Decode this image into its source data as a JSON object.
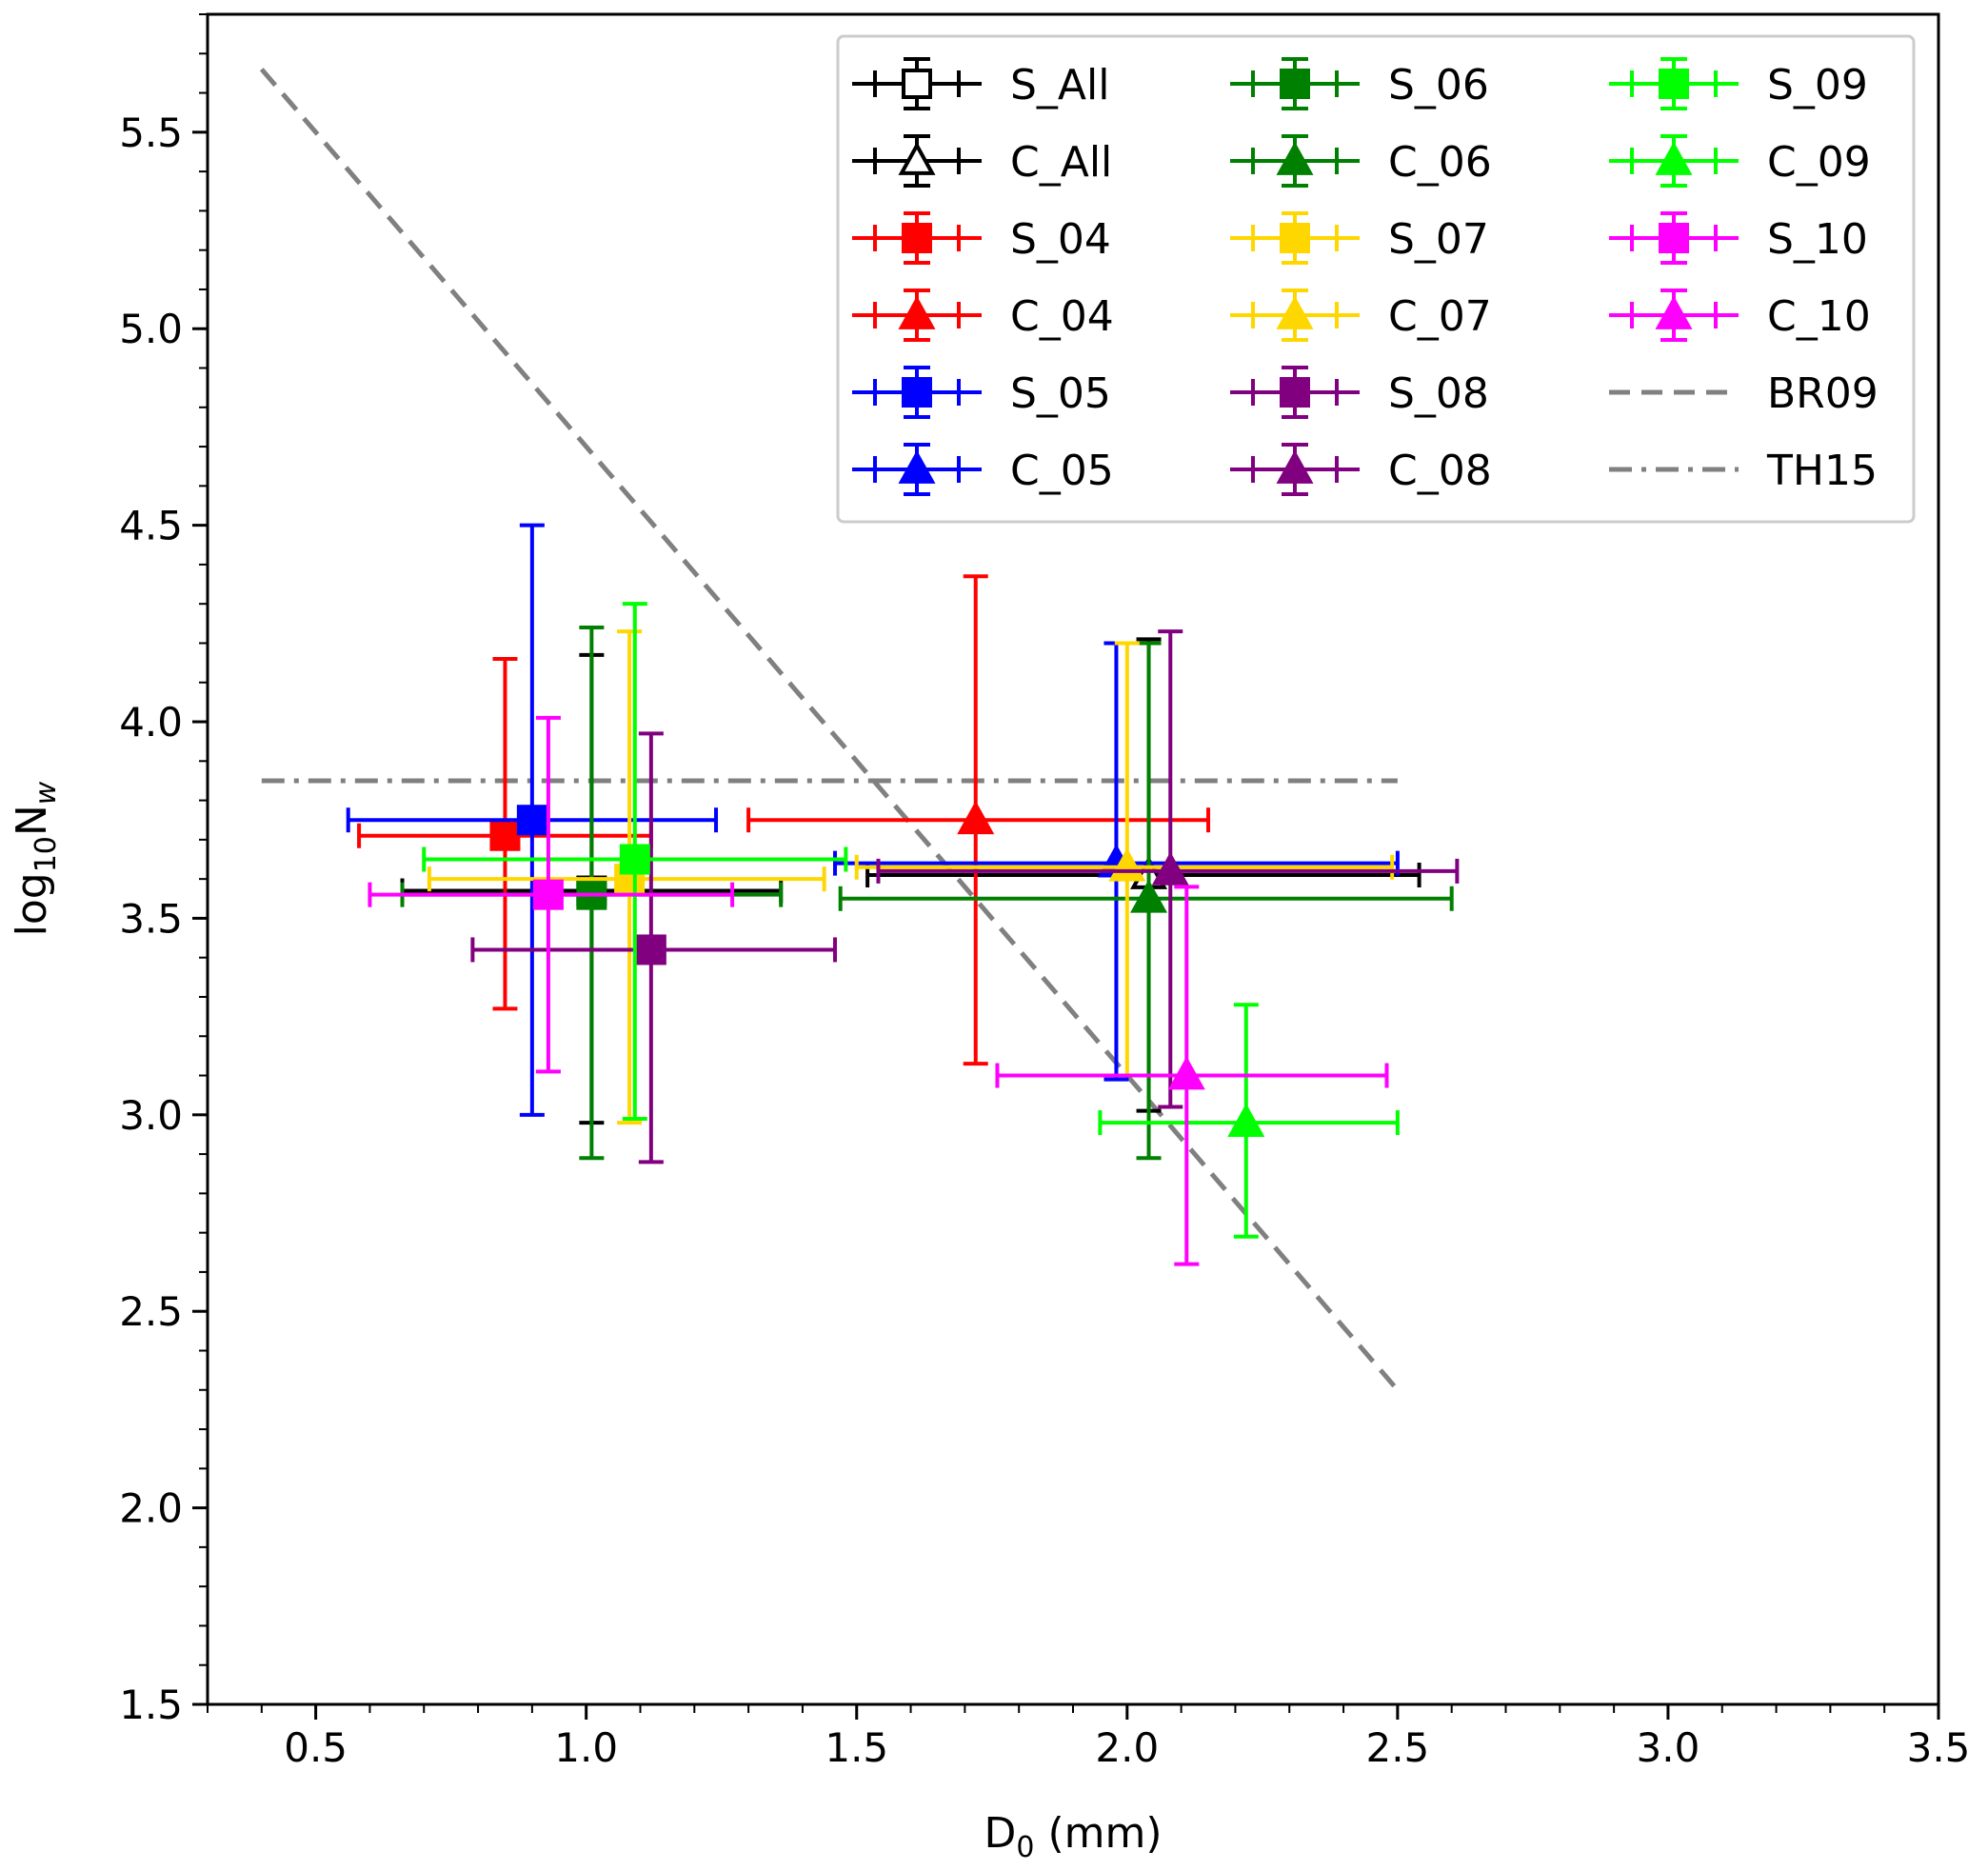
{
  "chart_data": {
    "type": "scatter",
    "title": "",
    "xlabel_main": "D",
    "xlabel_sub": "0",
    "xlabel_unit": " (mm)",
    "ylabel_pre": "log",
    "ylabel_sub": "10",
    "ylabel_main": "N",
    "ylabel_sub2": "w",
    "xlim": [
      0.3,
      3.5
    ],
    "ylim": [
      1.5,
      5.8
    ],
    "xticks": [
      {
        "value": 0.5,
        "label": "0.5"
      },
      {
        "value": 1.0,
        "label": "1.0"
      },
      {
        "value": 1.5,
        "label": "1.5"
      },
      {
        "value": 2.0,
        "label": "2.0"
      },
      {
        "value": 2.5,
        "label": "2.5"
      },
      {
        "value": 3.0,
        "label": "3.0"
      },
      {
        "value": 3.5,
        "label": "3.5"
      }
    ],
    "yticks": [
      {
        "value": 1.5,
        "label": "1.5"
      },
      {
        "value": 2.0,
        "label": "2.0"
      },
      {
        "value": 2.5,
        "label": "2.5"
      },
      {
        "value": 3.0,
        "label": "3.0"
      },
      {
        "value": 3.5,
        "label": "3.5"
      },
      {
        "value": 4.0,
        "label": "4.0"
      },
      {
        "value": 4.5,
        "label": "4.5"
      },
      {
        "value": 5.0,
        "label": "5.0"
      },
      {
        "value": 5.5,
        "label": "5.5"
      }
    ],
    "xminor_step": 0.1,
    "yminor_step": 0.1,
    "grid": false,
    "legend_position": "top-right",
    "legend_columns": 3,
    "series": [
      {
        "name": "S_All",
        "color": "#000000",
        "marker": "square",
        "filled": false,
        "x": 1.01,
        "y": 3.57,
        "xerr": [
          0.66,
          1.36
        ],
        "yerr": [
          2.98,
          4.17
        ]
      },
      {
        "name": "C_All",
        "color": "#000000",
        "marker": "triangle",
        "filled": false,
        "x": 2.04,
        "y": 3.61,
        "xerr": [
          1.52,
          2.54
        ],
        "yerr": [
          3.01,
          4.21
        ]
      },
      {
        "name": "S_04",
        "color": "#ff0000",
        "marker": "square",
        "filled": true,
        "x": 0.85,
        "y": 3.71,
        "xerr": [
          0.58,
          1.12
        ],
        "yerr": [
          3.27,
          4.16
        ]
      },
      {
        "name": "C_04",
        "color": "#ff0000",
        "marker": "triangle",
        "filled": true,
        "x": 1.72,
        "y": 3.75,
        "xerr": [
          1.3,
          2.15
        ],
        "yerr": [
          3.13,
          4.37
        ]
      },
      {
        "name": "S_05",
        "color": "#0000ff",
        "marker": "square",
        "filled": true,
        "x": 0.9,
        "y": 3.75,
        "xerr": [
          0.56,
          1.24
        ],
        "yerr": [
          3.0,
          4.5
        ]
      },
      {
        "name": "C_05",
        "color": "#0000ff",
        "marker": "triangle",
        "filled": true,
        "x": 1.98,
        "y": 3.64,
        "xerr": [
          1.46,
          2.5
        ],
        "yerr": [
          3.09,
          4.2
        ]
      },
      {
        "name": "S_06",
        "color": "#008000",
        "marker": "square",
        "filled": true,
        "x": 1.01,
        "y": 3.56,
        "xerr": [
          0.66,
          1.36
        ],
        "yerr": [
          2.89,
          4.24
        ]
      },
      {
        "name": "C_06",
        "color": "#008000",
        "marker": "triangle",
        "filled": true,
        "x": 2.04,
        "y": 3.55,
        "xerr": [
          1.47,
          2.6
        ],
        "yerr": [
          2.89,
          4.2
        ]
      },
      {
        "name": "S_07",
        "color": "#ffd700",
        "marker": "square",
        "filled": true,
        "x": 1.08,
        "y": 3.6,
        "xerr": [
          0.71,
          1.44
        ],
        "yerr": [
          2.98,
          4.23
        ]
      },
      {
        "name": "C_07",
        "color": "#ffd700",
        "marker": "triangle",
        "filled": true,
        "x": 2.0,
        "y": 3.63,
        "xerr": [
          1.5,
          2.49
        ],
        "yerr": [
          3.1,
          4.2
        ]
      },
      {
        "name": "S_08",
        "color": "#800080",
        "marker": "square",
        "filled": true,
        "x": 1.12,
        "y": 3.42,
        "xerr": [
          0.79,
          1.46
        ],
        "yerr": [
          2.88,
          3.97
        ]
      },
      {
        "name": "C_08",
        "color": "#800080",
        "marker": "triangle",
        "filled": true,
        "x": 2.08,
        "y": 3.62,
        "xerr": [
          1.54,
          2.61
        ],
        "yerr": [
          3.02,
          4.23
        ]
      },
      {
        "name": "S_09",
        "color": "#00ff00",
        "marker": "square",
        "filled": true,
        "x": 1.09,
        "y": 3.65,
        "xerr": [
          0.7,
          1.48
        ],
        "yerr": [
          2.99,
          4.3
        ]
      },
      {
        "name": "C_09",
        "color": "#00ff00",
        "marker": "triangle",
        "filled": true,
        "x": 2.22,
        "y": 2.98,
        "xerr": [
          1.95,
          2.5
        ],
        "yerr": [
          2.69,
          3.28
        ]
      },
      {
        "name": "S_10",
        "color": "#ff00ff",
        "marker": "square",
        "filled": true,
        "x": 0.93,
        "y": 3.56,
        "xerr": [
          0.6,
          1.27
        ],
        "yerr": [
          3.11,
          4.01
        ]
      },
      {
        "name": "C_10",
        "color": "#ff00ff",
        "marker": "triangle",
        "filled": true,
        "x": 2.11,
        "y": 3.1,
        "xerr": [
          1.76,
          2.48
        ],
        "yerr": [
          2.62,
          3.58
        ]
      }
    ],
    "lines": [
      {
        "name": "BR09",
        "color": "#808080",
        "style": "dashed",
        "x": [
          0.4,
          2.5
        ],
        "y": [
          5.66,
          2.3
        ]
      },
      {
        "name": "TH15",
        "color": "#808080",
        "style": "dashdot",
        "x": [
          0.4,
          2.5
        ],
        "y": [
          3.85,
          3.85
        ]
      }
    ]
  }
}
